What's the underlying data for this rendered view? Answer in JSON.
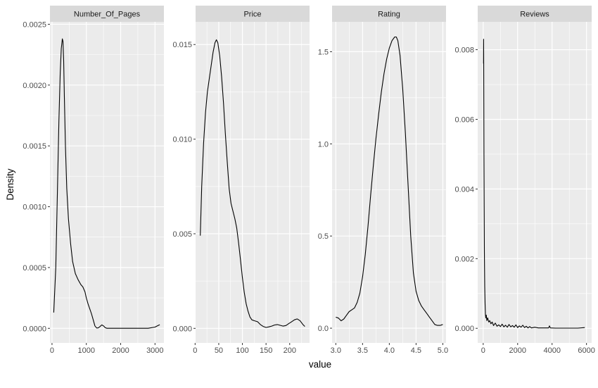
{
  "chart_data": {
    "type": "line",
    "layout": "faceted density plot, 4 panels, free scales",
    "xlabel": "value",
    "ylabel": "Density",
    "colors": {
      "panel_bg": "#EBEBEB",
      "grid": "#FFFFFF",
      "strip_bg": "#D9D9D9",
      "line": "#000000"
    },
    "facets": [
      {
        "name": "Number_Of_Pages",
        "xlim": [
          -60,
          3260
        ],
        "ylim": [
          -0.00012,
          0.00252
        ],
        "xticks": [
          0,
          1000,
          2000,
          3000
        ],
        "xtick_labels": [
          "0",
          "1000",
          "2000",
          "3000"
        ],
        "yticks": [
          0,
          0.0005,
          0.001,
          0.0015,
          0.002,
          0.0025
        ],
        "ytick_labels": [
          "0.0000",
          "0.0005",
          "0.0010",
          "0.0015",
          "0.0020",
          "0.0025"
        ],
        "x": [
          50,
          110,
          160,
          200,
          240,
          270,
          300,
          320,
          340,
          360,
          390,
          430,
          480,
          540,
          600,
          680,
          760,
          840,
          900,
          960,
          1000,
          1050,
          1100,
          1150,
          1200,
          1250,
          1300,
          1350,
          1400,
          1450,
          1500,
          1550,
          1600,
          1700,
          1800,
          2000,
          2200,
          2400,
          2600,
          2800,
          3000,
          3100,
          3140
        ],
        "y": [
          0.00013,
          0.0005,
          0.00115,
          0.0017,
          0.0021,
          0.0023,
          0.00238,
          0.00236,
          0.0022,
          0.0019,
          0.0015,
          0.00115,
          0.0009,
          0.0007,
          0.00055,
          0.00045,
          0.0004,
          0.00036,
          0.00034,
          0.0003,
          0.00025,
          0.0002,
          0.00016,
          0.00012,
          7e-05,
          2e-05,
          3e-06,
          4e-06,
          1.5e-05,
          2.8e-05,
          2e-05,
          5e-06,
          5e-07,
          5e-07,
          5e-07,
          5e-07,
          5e-07,
          5e-07,
          5e-07,
          5e-07,
          1e-05,
          2.5e-05,
          3e-05
        ]
      },
      {
        "name": "Price",
        "xlim": [
          1,
          242
        ],
        "ylim": [
          -0.00077,
          0.0162
        ],
        "xticks": [
          0,
          50,
          100,
          150,
          200
        ],
        "xtick_labels": [
          "0",
          "50",
          "100",
          "150",
          "200"
        ],
        "yticks": [
          0,
          0.005,
          0.01,
          0.015
        ],
        "ytick_labels": [
          "0.000",
          "0.005",
          "0.010",
          "0.015"
        ],
        "x": [
          11,
          14,
          18,
          22,
          26,
          30,
          34,
          38,
          42,
          45,
          48,
          52,
          56,
          60,
          64,
          68,
          72,
          76,
          80,
          84,
          88,
          92,
          96,
          100,
          104,
          108,
          112,
          116,
          120,
          126,
          132,
          138,
          144,
          150,
          156,
          162,
          168,
          174,
          180,
          186,
          192,
          198,
          204,
          210,
          216,
          222,
          228,
          232
        ],
        "y": [
          0.0049,
          0.0075,
          0.0098,
          0.0114,
          0.0125,
          0.0132,
          0.0139,
          0.0146,
          0.0151,
          0.01525,
          0.0151,
          0.0144,
          0.0133,
          0.0119,
          0.0103,
          0.0088,
          0.0074,
          0.0066,
          0.0062,
          0.0058,
          0.0053,
          0.0045,
          0.0036,
          0.0027,
          0.0019,
          0.0013,
          0.0009,
          0.0006,
          0.00045,
          0.0004,
          0.00035,
          0.0002,
          0.0001,
          5e-05,
          8e-05,
          0.00012,
          0.00018,
          0.0002,
          0.00016,
          0.00012,
          0.00015,
          0.00025,
          0.00035,
          0.00045,
          0.0005,
          0.0004,
          0.0002,
          0.0001
        ]
      },
      {
        "name": "Rating",
        "xlim": [
          2.93,
          5.06
        ],
        "ylim": [
          -0.08,
          1.662
        ],
        "xticks": [
          3.0,
          3.5,
          4.0,
          4.5,
          5.0
        ],
        "xtick_labels": [
          "3.0",
          "3.5",
          "4.0",
          "4.5",
          "5.0"
        ],
        "yticks": [
          0,
          0.5,
          1.0,
          1.5
        ],
        "ytick_labels": [
          "0.0",
          "0.5",
          "1.0",
          "1.5"
        ],
        "x": [
          3.0,
          3.05,
          3.1,
          3.15,
          3.2,
          3.25,
          3.3,
          3.35,
          3.4,
          3.45,
          3.5,
          3.55,
          3.6,
          3.65,
          3.7,
          3.75,
          3.8,
          3.85,
          3.9,
          3.95,
          4.0,
          4.05,
          4.1,
          4.13,
          4.16,
          4.2,
          4.25,
          4.3,
          4.35,
          4.4,
          4.45,
          4.5,
          4.55,
          4.6,
          4.65,
          4.7,
          4.75,
          4.8,
          4.85,
          4.9,
          4.95,
          5.0
        ],
        "y": [
          0.06,
          0.055,
          0.04,
          0.05,
          0.07,
          0.09,
          0.1,
          0.11,
          0.14,
          0.19,
          0.28,
          0.4,
          0.55,
          0.72,
          0.88,
          1.03,
          1.16,
          1.28,
          1.38,
          1.46,
          1.52,
          1.56,
          1.58,
          1.58,
          1.56,
          1.48,
          1.3,
          1.06,
          0.78,
          0.5,
          0.3,
          0.2,
          0.15,
          0.12,
          0.1,
          0.08,
          0.06,
          0.04,
          0.02,
          0.015,
          0.015,
          0.02
        ]
      },
      {
        "name": "Reviews",
        "xlim": [
          -320,
          6300
        ],
        "ylim": [
          -0.00042,
          0.0088
        ],
        "xticks": [
          0,
          2000,
          4000,
          6000
        ],
        "xtick_labels": [
          "0",
          "2000",
          "4000",
          "6000"
        ],
        "yticks": [
          0,
          0.002,
          0.004,
          0.006,
          0.008
        ],
        "ytick_labels": [
          "0.000",
          "0.002",
          "0.004",
          "0.006",
          "0.008"
        ],
        "x": [
          20,
          25,
          28,
          35,
          45,
          55,
          70,
          90,
          110,
          130,
          150,
          180,
          210,
          260,
          320,
          380,
          450,
          520,
          600,
          700,
          800,
          900,
          1000,
          1100,
          1200,
          1300,
          1400,
          1500,
          1600,
          1700,
          1800,
          1900,
          2000,
          2100,
          2200,
          2300,
          2400,
          2500,
          2600,
          2700,
          2800,
          3000,
          3200,
          3500,
          3800,
          3850,
          3900,
          4200,
          4600,
          5000,
          5500,
          5900
        ],
        "y": [
          0.0076,
          0.0083,
          0.0079,
          0.0065,
          0.005,
          0.0035,
          0.0022,
          0.0012,
          0.0007,
          0.0004,
          0.0003,
          0.00038,
          0.00022,
          0.0003,
          0.00018,
          0.00022,
          0.00013,
          0.00018,
          8e-05,
          0.00015,
          6e-05,
          0.0001,
          5e-05,
          0.00012,
          4e-05,
          9e-05,
          3e-05,
          0.00011,
          4e-05,
          8e-05,
          3e-05,
          0.0001,
          2e-05,
          7e-05,
          3e-05,
          9e-05,
          2e-05,
          6e-05,
          1e-05,
          5e-05,
          1e-05,
          3e-05,
          1e-05,
          1e-05,
          1e-05,
          7e-05,
          1e-05,
          5e-06,
          5e-06,
          5e-06,
          5e-06,
          2e-05
        ]
      }
    ]
  }
}
